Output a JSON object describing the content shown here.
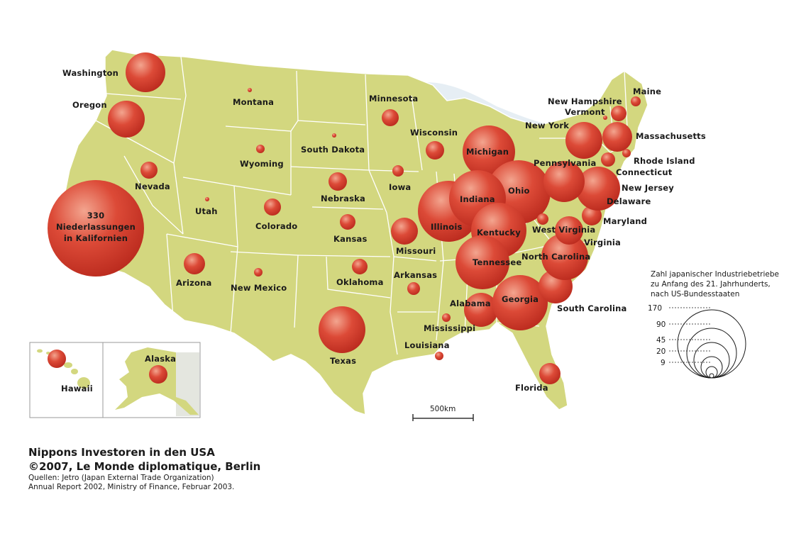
{
  "title": "Nippons Investoren in den USA",
  "copyright": "©2007, Le Monde diplomatique, Berlin",
  "sources": {
    "line1": "Quellen: Jetro (Japan External Trade Organization)",
    "line2": "Annual Report 2002, Ministry of Finance, Februar 2003."
  },
  "scale_bar": "500km",
  "legend": {
    "caption_lines": [
      "Zahl japanischer Industriebetriebe",
      "zu Anfang des 21. Jahrhunderts,",
      "nach US-Bundesstaaten"
    ],
    "values": [
      "170",
      "90",
      "45",
      "20",
      "9"
    ]
  },
  "california_label_lines": [
    "330",
    "Niederlassungen",
    "in Kalifornien"
  ],
  "colors": {
    "land": "#d3d77f",
    "border": "#ffffff",
    "bubble": "#d94535",
    "bubble_highlight": "#f0a08c",
    "water": "#e4edf3"
  },
  "states": [
    {
      "name": "Washington"
    },
    {
      "name": "Oregon"
    },
    {
      "name": "Nevada"
    },
    {
      "name": "Utah"
    },
    {
      "name": "Montana"
    },
    {
      "name": "Wyoming"
    },
    {
      "name": "Colorado"
    },
    {
      "name": "Arizona"
    },
    {
      "name": "New Mexico"
    },
    {
      "name": "South Dakota"
    },
    {
      "name": "Nebraska"
    },
    {
      "name": "Kansas"
    },
    {
      "name": "Oklahoma"
    },
    {
      "name": "Texas"
    },
    {
      "name": "Minnesota"
    },
    {
      "name": "Iowa"
    },
    {
      "name": "Missouri"
    },
    {
      "name": "Arkansas"
    },
    {
      "name": "Louisiana"
    },
    {
      "name": "Wisconsin"
    },
    {
      "name": "Illinois"
    },
    {
      "name": "Michigan"
    },
    {
      "name": "Indiana"
    },
    {
      "name": "Ohio"
    },
    {
      "name": "Kentucky"
    },
    {
      "name": "Tennessee"
    },
    {
      "name": "Mississippi"
    },
    {
      "name": "Alabama"
    },
    {
      "name": "Georgia"
    },
    {
      "name": "Florida"
    },
    {
      "name": "South Carolina"
    },
    {
      "name": "North Carolina"
    },
    {
      "name": "Virginia"
    },
    {
      "name": "West Virginia"
    },
    {
      "name": "Maryland"
    },
    {
      "name": "Delaware"
    },
    {
      "name": "New Jersey"
    },
    {
      "name": "Pennsylvania"
    },
    {
      "name": "New York"
    },
    {
      "name": "Connecticut"
    },
    {
      "name": "Rhode Island"
    },
    {
      "name": "Massachusetts"
    },
    {
      "name": "Vermont"
    },
    {
      "name": "New Hampshire"
    },
    {
      "name": "Maine"
    },
    {
      "name": "Hawaii"
    },
    {
      "name": "Alaska"
    }
  ]
}
